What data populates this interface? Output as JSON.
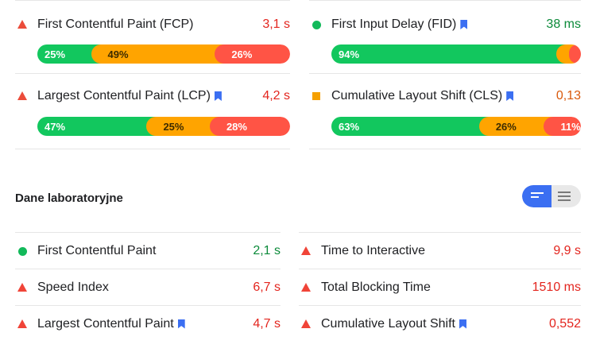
{
  "field_data": {
    "left": [
      {
        "name": "First Contentful Paint (FCP)",
        "bookmark": false,
        "icon": "triangle-red",
        "value": "3,1 s",
        "value_color": "red",
        "distribution": {
          "good": "25%",
          "avg": "49%",
          "poor": "26%"
        },
        "fractions": [
          0.25,
          0.49,
          0.26
        ]
      },
      {
        "name": "Largest Contentful Paint (LCP)",
        "bookmark": true,
        "icon": "triangle-red",
        "value": "4,2 s",
        "value_color": "red",
        "distribution": {
          "good": "47%",
          "avg": "25%",
          "poor": "28%"
        },
        "fractions": [
          0.47,
          0.25,
          0.28
        ]
      }
    ],
    "right": [
      {
        "name": "First Input Delay (FID)",
        "bookmark": true,
        "icon": "circle-green",
        "value": "38 ms",
        "value_color": "green",
        "distribution": {
          "good": "94%",
          "avg": "5%",
          "poor": "1%"
        },
        "fractions": [
          0.94,
          0.05,
          0.01
        ]
      },
      {
        "name": "Cumulative Layout Shift (CLS)",
        "bookmark": true,
        "icon": "square-orange",
        "value": "0,13",
        "value_color": "orange",
        "distribution": {
          "good": "63%",
          "avg": "26%",
          "poor": "11%"
        },
        "fractions": [
          0.63,
          0.26,
          0.11
        ]
      }
    ]
  },
  "lab": {
    "title": "Dane laboratoryjne",
    "left": [
      {
        "name": "First Contentful Paint",
        "icon": "circle-green",
        "value": "2,1 s",
        "value_color": "green",
        "bookmark": false
      },
      {
        "name": "Speed Index",
        "icon": "triangle-red",
        "value": "6,7 s",
        "value_color": "red",
        "bookmark": false
      },
      {
        "name": "Largest Contentful Paint",
        "icon": "triangle-red",
        "value": "4,7 s",
        "value_color": "red",
        "bookmark": true
      }
    ],
    "right": [
      {
        "name": "Time to Interactive",
        "icon": "triangle-red",
        "value": "9,9 s",
        "value_color": "red",
        "bookmark": false
      },
      {
        "name": "Total Blocking Time",
        "icon": "triangle-red",
        "value": "1510 ms",
        "value_color": "red",
        "bookmark": false
      },
      {
        "name": "Cumulative Layout Shift",
        "icon": "triangle-red",
        "value": "0,552",
        "value_color": "red",
        "bookmark": true
      }
    ]
  },
  "colors": {
    "good": "#12c75e",
    "average": "#ffa400",
    "poor": "#ff5445",
    "accent": "#3b6ff2"
  },
  "icons": {
    "toggle_active": "collapsed-view-icon",
    "toggle_passive": "expanded-view-icon",
    "bookmark": "bookmark-icon"
  }
}
